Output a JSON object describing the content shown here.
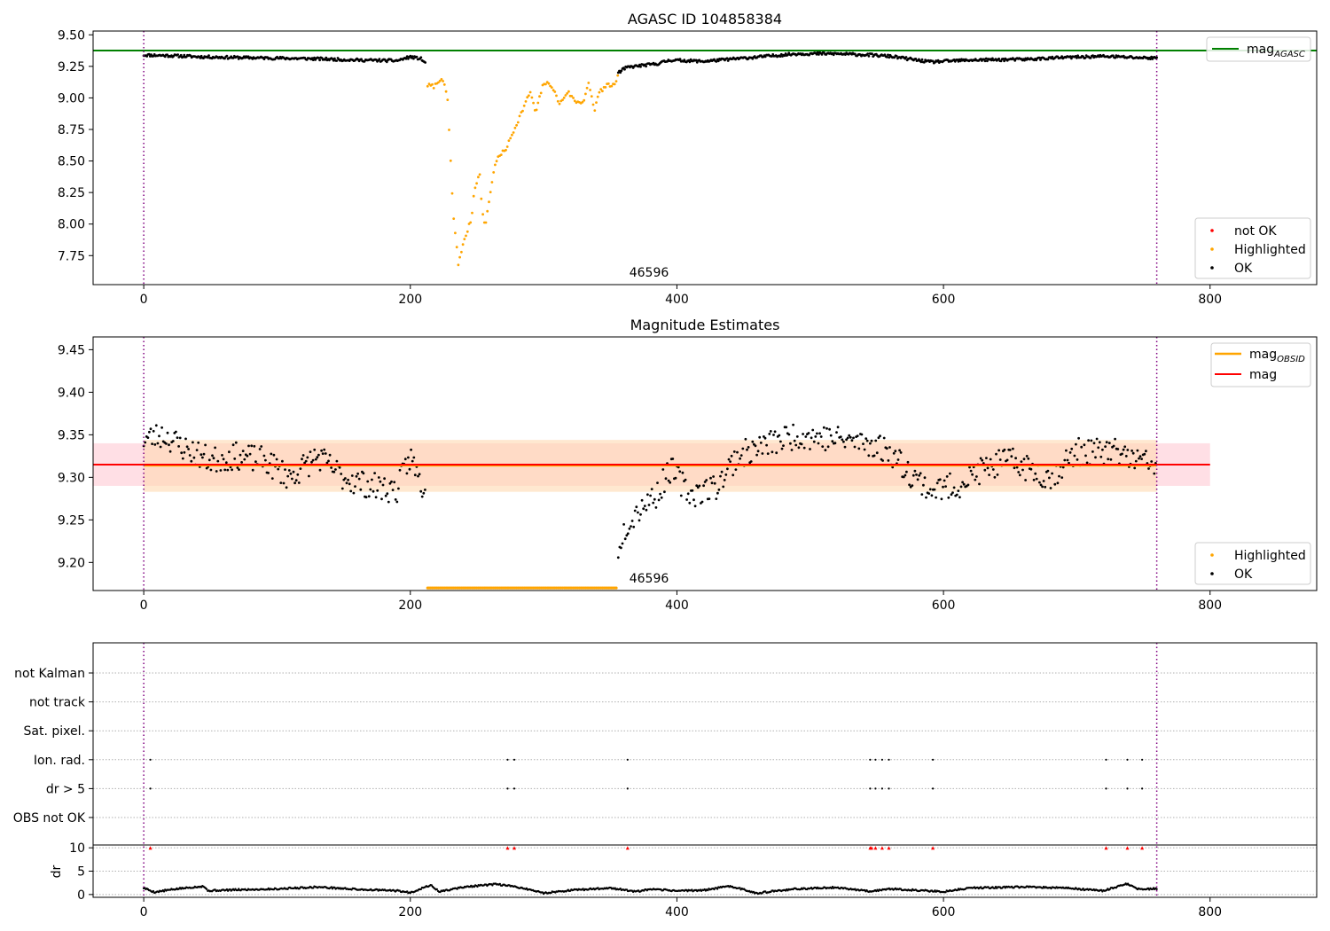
{
  "chart_data": [
    {
      "panel": "top",
      "type": "scatter",
      "title": "AGASC ID 104858384",
      "xlim": [
        -38,
        880
      ],
      "ylim": [
        7.52,
        9.53
      ],
      "xticks": [
        "0",
        "200",
        "400",
        "600",
        "800"
      ],
      "yticks": [
        "7.75",
        "8.00",
        "8.25",
        "8.50",
        "8.75",
        "9.00",
        "9.25",
        "9.50"
      ],
      "ytick_values": [
        7.75,
        8.0,
        8.25,
        8.5,
        8.75,
        9.0,
        9.25,
        9.5
      ],
      "vlines": [
        0,
        760
      ],
      "hline": {
        "label": "mag",
        "sub": "AGASC",
        "value": 9.375,
        "color": "#008000"
      },
      "annotation": {
        "text": "46596",
        "x": 366
      },
      "legend_lines": [
        {
          "label": "mag",
          "sub": "AGASC",
          "color": "#008000"
        }
      ],
      "legend_points": [
        {
          "label": "not OK",
          "color": "#ff0000"
        },
        {
          "label": "Highlighted",
          "color": "#ffa500"
        },
        {
          "label": "OK",
          "color": "#000000"
        }
      ],
      "ok_segments": [
        {
          "x": [
            0,
            212
          ],
          "knots": [
            [
              0,
              9.34
            ],
            [
              20,
              9.335
            ],
            [
              45,
              9.325
            ],
            [
              70,
              9.32
            ],
            [
              100,
              9.315
            ],
            [
              130,
              9.31
            ],
            [
              160,
              9.3
            ],
            [
              190,
              9.295
            ],
            [
              200,
              9.325
            ],
            [
              208,
              9.31
            ],
            [
              212,
              9.27
            ]
          ]
        },
        {
          "x": [
            356,
            760
          ],
          "knots": [
            [
              356,
              9.2
            ],
            [
              362,
              9.24
            ],
            [
              372,
              9.255
            ],
            [
              385,
              9.27
            ],
            [
              395,
              9.3
            ],
            [
              420,
              9.29
            ],
            [
              450,
              9.315
            ],
            [
              490,
              9.35
            ],
            [
              520,
              9.35
            ],
            [
              545,
              9.34
            ],
            [
              560,
              9.33
            ],
            [
              590,
              9.285
            ],
            [
              620,
              9.3
            ],
            [
              660,
              9.305
            ],
            [
              690,
              9.32
            ],
            [
              720,
              9.33
            ],
            [
              745,
              9.32
            ],
            [
              760,
              9.315
            ]
          ]
        }
      ],
      "highlighted_knots": [
        [
          213,
          9.1
        ],
        [
          218,
          9.09
        ],
        [
          222,
          9.15
        ],
        [
          226,
          9.1
        ],
        [
          228,
          8.98
        ],
        [
          230,
          8.55
        ],
        [
          232,
          8.1
        ],
        [
          234,
          7.9
        ],
        [
          236,
          7.68
        ],
        [
          238,
          7.78
        ],
        [
          242,
          7.92
        ],
        [
          246,
          8.05
        ],
        [
          248,
          8.28
        ],
        [
          252,
          8.4
        ],
        [
          254,
          8.1
        ],
        [
          256,
          7.97
        ],
        [
          260,
          8.25
        ],
        [
          264,
          8.5
        ],
        [
          272,
          8.6
        ],
        [
          280,
          8.8
        ],
        [
          286,
          8.95
        ],
        [
          290,
          9.05
        ],
        [
          294,
          8.88
        ],
        [
          300,
          9.12
        ],
        [
          306,
          9.1
        ],
        [
          312,
          8.95
        ],
        [
          318,
          9.05
        ],
        [
          324,
          8.97
        ],
        [
          330,
          8.97
        ],
        [
          334,
          9.12
        ],
        [
          338,
          8.9
        ],
        [
          342,
          9.05
        ],
        [
          348,
          9.1
        ],
        [
          354,
          9.1
        ],
        [
          356,
          9.18
        ]
      ]
    },
    {
      "panel": "middle",
      "type": "scatter",
      "title": "Magnitude Estimates",
      "xlim": [
        -38,
        880
      ],
      "ylim": [
        9.167,
        9.465
      ],
      "xticks": [
        "0",
        "200",
        "400",
        "600",
        "800"
      ],
      "yticks": [
        "9.20",
        "9.25",
        "9.30",
        "9.35",
        "9.40",
        "9.45"
      ],
      "ytick_values": [
        9.2,
        9.25,
        9.3,
        9.35,
        9.4,
        9.45
      ],
      "vlines": [
        0,
        760
      ],
      "mag_line": {
        "label": "mag",
        "value": 9.315,
        "band": [
          9.29,
          9.34
        ],
        "xrange": [
          -38,
          800
        ],
        "color": "#ff0000"
      },
      "mag_obsid_line": {
        "label": "mag",
        "sub": "OBSID",
        "value": 9.314,
        "band": [
          9.283,
          9.344
        ],
        "xrange": [
          0,
          760
        ],
        "color": "#ffa500"
      },
      "annotation": {
        "text": "46596",
        "x": 366
      },
      "legend_lines": [
        {
          "label": "mag",
          "sub": "OBSID",
          "color": "#ffa500"
        },
        {
          "label": "mag",
          "color": "#ff0000"
        }
      ],
      "legend_points": [
        {
          "label": "Highlighted",
          "color": "#ffa500"
        },
        {
          "label": "OK",
          "color": "#000000"
        }
      ],
      "ok_segments": [
        {
          "x": [
            0,
            212
          ],
          "knots": [
            [
              0,
              9.345
            ],
            [
              15,
              9.35
            ],
            [
              30,
              9.335
            ],
            [
              50,
              9.32
            ],
            [
              70,
              9.325
            ],
            [
              90,
              9.32
            ],
            [
              110,
              9.3
            ],
            [
              130,
              9.325
            ],
            [
              150,
              9.3
            ],
            [
              170,
              9.29
            ],
            [
              190,
              9.285
            ],
            [
              200,
              9.325
            ],
            [
              206,
              9.3
            ],
            [
              210,
              9.285
            ],
            [
              212,
              9.265
            ]
          ]
        },
        {
          "x": [
            356,
            760
          ],
          "knots": [
            [
              356,
              9.22
            ],
            [
              362,
              9.245
            ],
            [
              375,
              9.27
            ],
            [
              385,
              9.28
            ],
            [
              395,
              9.31
            ],
            [
              410,
              9.28
            ],
            [
              430,
              9.29
            ],
            [
              445,
              9.325
            ],
            [
              470,
              9.34
            ],
            [
              490,
              9.35
            ],
            [
              520,
              9.345
            ],
            [
              545,
              9.34
            ],
            [
              560,
              9.33
            ],
            [
              575,
              9.305
            ],
            [
              590,
              9.285
            ],
            [
              610,
              9.29
            ],
            [
              630,
              9.31
            ],
            [
              650,
              9.32
            ],
            [
              680,
              9.3
            ],
            [
              700,
              9.33
            ],
            [
              730,
              9.33
            ],
            [
              745,
              9.32
            ],
            [
              760,
              9.315
            ]
          ]
        }
      ],
      "highlighted_range": [
        213,
        355
      ],
      "highlighted_value": 9.17
    },
    {
      "panel": "bottom",
      "type": "scatter",
      "xlim": [
        -38,
        880
      ],
      "xticks": [
        "0",
        "200",
        "400",
        "600",
        "800"
      ],
      "vlines": [
        0,
        760
      ],
      "flag_rows": [
        "not Kalman",
        "not track",
        "Sat. pixel.",
        "Ion. rad.",
        "dr > 5",
        "OBS not OK"
      ],
      "flag_points": {
        "Ion. rad.": [
          5,
          273,
          278,
          363,
          545,
          549,
          554,
          559,
          592,
          722,
          738,
          749
        ],
        "dr > 5": [
          5,
          273,
          278,
          363,
          545,
          549,
          554,
          559,
          592,
          722,
          738,
          749
        ]
      },
      "dr_ylabel": "dr",
      "dr_yticks": [
        "0",
        "5",
        "10"
      ],
      "dr_ytick_values": [
        0,
        5,
        10
      ],
      "dr_ylim": [
        -0.6,
        10.6
      ],
      "dr_outliers": [
        5,
        273,
        278,
        363,
        545,
        546,
        549,
        554,
        559,
        592,
        722,
        738,
        749
      ],
      "dr_knots": [
        [
          0,
          1.4
        ],
        [
          8,
          0.5
        ],
        [
          15,
          0.8
        ],
        [
          25,
          1.2
        ],
        [
          45,
          1.8
        ],
        [
          48,
          0.8
        ],
        [
          70,
          1.0
        ],
        [
          100,
          1.2
        ],
        [
          130,
          1.6
        ],
        [
          160,
          1.1
        ],
        [
          190,
          0.8
        ],
        [
          200,
          0.4
        ],
        [
          215,
          2.0
        ],
        [
          222,
          0.6
        ],
        [
          240,
          1.6
        ],
        [
          265,
          2.2
        ],
        [
          280,
          1.6
        ],
        [
          290,
          1.0
        ],
        [
          300,
          0.3
        ],
        [
          320,
          0.9
        ],
        [
          350,
          1.4
        ],
        [
          370,
          0.6
        ],
        [
          380,
          1.1
        ],
        [
          400,
          0.8
        ],
        [
          420,
          0.9
        ],
        [
          440,
          1.8
        ],
        [
          460,
          0.3
        ],
        [
          490,
          1.2
        ],
        [
          520,
          1.5
        ],
        [
          545,
          0.7
        ],
        [
          560,
          1.2
        ],
        [
          580,
          0.9
        ],
        [
          600,
          0.6
        ],
        [
          620,
          1.4
        ],
        [
          660,
          1.6
        ],
        [
          690,
          1.4
        ],
        [
          720,
          0.8
        ],
        [
          738,
          2.3
        ],
        [
          745,
          1.2
        ],
        [
          760,
          1.2
        ]
      ]
    }
  ]
}
